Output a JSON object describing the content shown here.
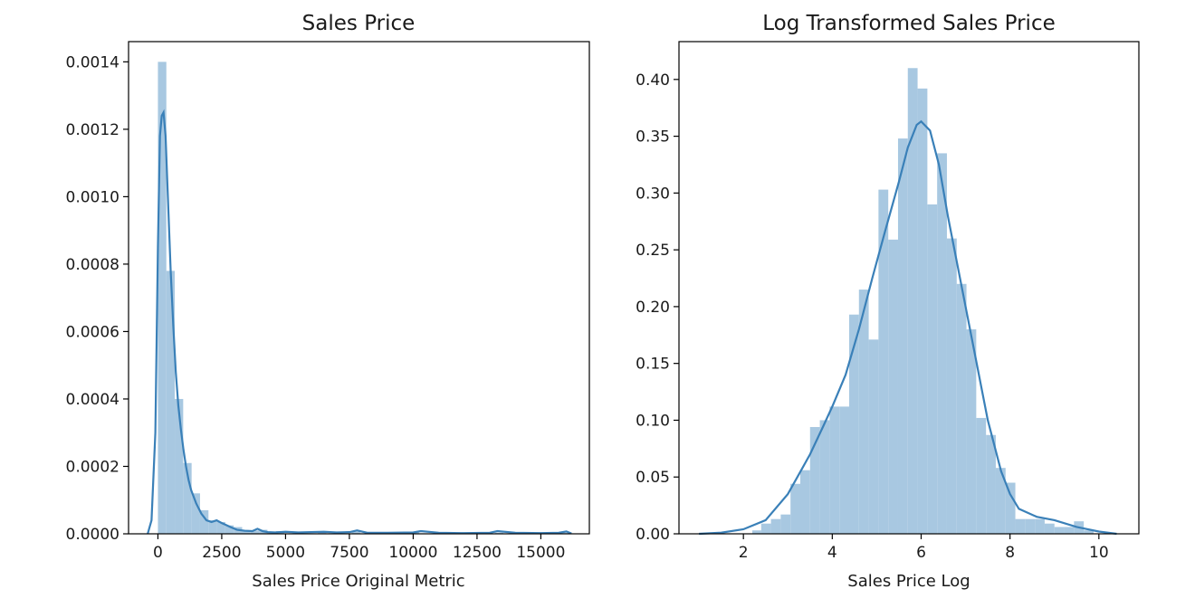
{
  "chart_data": [
    {
      "type": "histogram",
      "title": "Sales Price",
      "xlabel": "Sales Price Original Metric",
      "ylabel": "",
      "xlim": [
        -1150,
        16900
      ],
      "ylim": [
        0,
        0.00146
      ],
      "xticks": [
        0,
        2500,
        5000,
        7500,
        10000,
        12500,
        15000
      ],
      "xtick_labels": [
        "0",
        "2500",
        "5000",
        "7500",
        "10000",
        "12500",
        "15000"
      ],
      "yticks": [
        0,
        0.0002,
        0.0004,
        0.0006,
        0.0008,
        0.001,
        0.0012,
        0.0014
      ],
      "ytick_labels": [
        "0.0000",
        "0.0002",
        "0.0004",
        "0.0006",
        "0.0008",
        "0.0010",
        "0.0012",
        "0.0014"
      ],
      "hist_color": "#a8c8e1",
      "kde_color": "#3a80b8",
      "grid": false,
      "bins": [
        {
          "x0": 0,
          "x1": 330,
          "density": 0.0014
        },
        {
          "x0": 330,
          "x1": 660,
          "density": 0.00078
        },
        {
          "x0": 660,
          "x1": 990,
          "density": 0.0004
        },
        {
          "x0": 990,
          "x1": 1320,
          "density": 0.00021
        },
        {
          "x0": 1320,
          "x1": 1650,
          "density": 0.00012
        },
        {
          "x0": 1650,
          "x1": 1980,
          "density": 7e-05
        },
        {
          "x0": 1980,
          "x1": 2310,
          "density": 4e-05
        },
        {
          "x0": 2310,
          "x1": 2640,
          "density": 3.5e-05
        },
        {
          "x0": 2640,
          "x1": 2970,
          "density": 2.5e-05
        },
        {
          "x0": 2970,
          "x1": 3300,
          "density": 2e-05
        },
        {
          "x0": 3300,
          "x1": 3630,
          "density": 1e-05
        },
        {
          "x0": 3630,
          "x1": 3960,
          "density": 1e-05
        },
        {
          "x0": 3960,
          "x1": 4290,
          "density": 1.2e-05
        },
        {
          "x0": 4290,
          "x1": 4620,
          "density": 6e-06
        },
        {
          "x0": 4620,
          "x1": 4950,
          "density": 8e-06
        },
        {
          "x0": 5280,
          "x1": 5610,
          "density": 5e-06
        },
        {
          "x0": 6270,
          "x1": 6600,
          "density": 5e-06
        },
        {
          "x0": 7590,
          "x1": 7920,
          "density": 6e-06
        },
        {
          "x0": 9900,
          "x1": 10230,
          "density": 4e-06
        },
        {
          "x0": 13200,
          "x1": 13530,
          "density": 3e-06
        },
        {
          "x0": 15840,
          "x1": 16170,
          "density": 3e-06
        }
      ],
      "kde": {
        "x": [
          -400,
          -250,
          -100,
          0,
          80,
          150,
          220,
          300,
          400,
          500,
          600,
          700,
          800,
          900,
          1000,
          1100,
          1200,
          1300,
          1400,
          1500,
          1700,
          1900,
          2100,
          2300,
          2500,
          2700,
          2900,
          3100,
          3400,
          3700,
          3900,
          4100,
          4300,
          4600,
          5000,
          5500,
          6000,
          6500,
          7000,
          7500,
          7800,
          8200,
          9000,
          10000,
          10300,
          11000,
          12000,
          13000,
          13300,
          14000,
          15000,
          15700,
          16000,
          16200
        ],
        "y": [
          0.0,
          4e-05,
          0.0003,
          0.00085,
          0.00118,
          0.00124,
          0.00125,
          0.00118,
          0.00098,
          0.00078,
          0.00062,
          0.00048,
          0.00038,
          0.00031,
          0.00025,
          0.0002,
          0.00016,
          0.00013,
          0.00011,
          9e-05,
          6e-05,
          4e-05,
          3.5e-05,
          4e-05,
          3.2e-05,
          2.5e-05,
          1.8e-05,
          1.2e-05,
          9e-06,
          8e-06,
          1.5e-05,
          8e-06,
          5e-06,
          4e-06,
          6e-06,
          4e-06,
          5e-06,
          6e-06,
          4e-06,
          5e-06,
          1e-05,
          3e-06,
          3e-06,
          4e-06,
          8e-06,
          3e-06,
          2e-06,
          3e-06,
          8e-06,
          3e-06,
          2e-06,
          3e-06,
          7e-06,
          1e-06
        ]
      }
    },
    {
      "type": "histogram",
      "title": "Log Transformed Sales Price",
      "xlabel": "Sales Price Log",
      "ylabel": "",
      "xlim": [
        0.55,
        10.9
      ],
      "ylim": [
        0,
        0.4333
      ],
      "xticks": [
        2,
        4,
        6,
        8,
        10
      ],
      "xtick_labels": [
        "2",
        "4",
        "6",
        "8",
        "10"
      ],
      "yticks": [
        0,
        0.05,
        0.1,
        0.15,
        0.2,
        0.25,
        0.3,
        0.35,
        0.4
      ],
      "ytick_labels": [
        "0.00",
        "0.05",
        "0.10",
        "0.15",
        "0.20",
        "0.25",
        "0.30",
        "0.35",
        "0.40"
      ],
      "hist_color": "#a8c8e1",
      "kde_color": "#3a80b8",
      "grid": false,
      "bins": [
        {
          "x0": 2.2,
          "x1": 2.4,
          "density": 0.003
        },
        {
          "x0": 2.4,
          "x1": 2.62,
          "density": 0.009
        },
        {
          "x0": 2.62,
          "x1": 2.84,
          "density": 0.013
        },
        {
          "x0": 2.84,
          "x1": 3.06,
          "density": 0.017
        },
        {
          "x0": 3.06,
          "x1": 3.28,
          "density": 0.044
        },
        {
          "x0": 3.28,
          "x1": 3.5,
          "density": 0.056
        },
        {
          "x0": 3.5,
          "x1": 3.72,
          "density": 0.094
        },
        {
          "x0": 3.72,
          "x1": 3.94,
          "density": 0.1
        },
        {
          "x0": 3.94,
          "x1": 4.16,
          "density": 0.112
        },
        {
          "x0": 4.16,
          "x1": 4.38,
          "density": 0.112
        },
        {
          "x0": 4.38,
          "x1": 4.6,
          "density": 0.193
        },
        {
          "x0": 4.6,
          "x1": 4.82,
          "density": 0.215
        },
        {
          "x0": 4.82,
          "x1": 5.04,
          "density": 0.171
        },
        {
          "x0": 5.04,
          "x1": 5.26,
          "density": 0.303
        },
        {
          "x0": 5.26,
          "x1": 5.48,
          "density": 0.259
        },
        {
          "x0": 5.48,
          "x1": 5.7,
          "density": 0.348
        },
        {
          "x0": 5.7,
          "x1": 5.92,
          "density": 0.41
        },
        {
          "x0": 5.92,
          "x1": 6.14,
          "density": 0.392
        },
        {
          "x0": 6.14,
          "x1": 6.36,
          "density": 0.29
        },
        {
          "x0": 6.36,
          "x1": 6.58,
          "density": 0.335
        },
        {
          "x0": 6.58,
          "x1": 6.8,
          "density": 0.26
        },
        {
          "x0": 6.8,
          "x1": 7.02,
          "density": 0.22
        },
        {
          "x0": 7.02,
          "x1": 7.24,
          "density": 0.18
        },
        {
          "x0": 7.24,
          "x1": 7.46,
          "density": 0.102
        },
        {
          "x0": 7.46,
          "x1": 7.68,
          "density": 0.087
        },
        {
          "x0": 7.68,
          "x1": 7.9,
          "density": 0.058
        },
        {
          "x0": 7.9,
          "x1": 8.12,
          "density": 0.045
        },
        {
          "x0": 8.12,
          "x1": 8.34,
          "density": 0.013
        },
        {
          "x0": 8.34,
          "x1": 8.56,
          "density": 0.013
        },
        {
          "x0": 8.56,
          "x1": 8.78,
          "density": 0.013
        },
        {
          "x0": 8.78,
          "x1": 9.0,
          "density": 0.009
        },
        {
          "x0": 9.0,
          "x1": 9.22,
          "density": 0.006
        },
        {
          "x0": 9.22,
          "x1": 9.44,
          "density": 0.006
        },
        {
          "x0": 9.44,
          "x1": 9.66,
          "density": 0.011
        },
        {
          "x0": 9.66,
          "x1": 9.88,
          "density": 0.003
        }
      ],
      "kde": {
        "x": [
          1.0,
          1.5,
          2.0,
          2.5,
          3.0,
          3.5,
          3.8,
          4.0,
          4.3,
          4.6,
          4.9,
          5.2,
          5.5,
          5.7,
          5.9,
          6.0,
          6.2,
          6.4,
          6.6,
          6.9,
          7.2,
          7.5,
          7.8,
          8.0,
          8.2,
          8.6,
          9.0,
          9.5,
          10.0,
          10.4
        ],
        "y": [
          0.0,
          0.001,
          0.004,
          0.012,
          0.035,
          0.07,
          0.095,
          0.112,
          0.14,
          0.18,
          0.225,
          0.268,
          0.31,
          0.34,
          0.36,
          0.363,
          0.355,
          0.325,
          0.28,
          0.22,
          0.16,
          0.1,
          0.055,
          0.035,
          0.022,
          0.015,
          0.012,
          0.006,
          0.002,
          0.0
        ]
      }
    }
  ]
}
